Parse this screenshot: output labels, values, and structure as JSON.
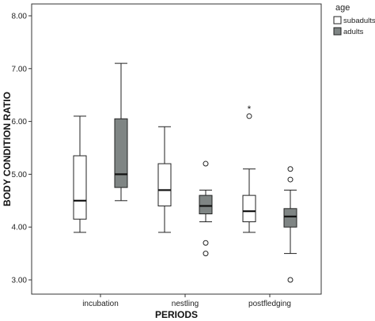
{
  "chart_data": {
    "type": "box",
    "xlabel": "PERIODS",
    "ylabel": "BODY CONDITION RATIO",
    "ylim": [
      2.85,
      8.3
    ],
    "yticks": [
      "3.00",
      "4.00",
      "5.00",
      "6.00",
      "7.00",
      "8.00"
    ],
    "categories": [
      "incubation",
      "nestling",
      "postfledging"
    ],
    "legend": {
      "title": "age",
      "position": "top-right, outside plot"
    },
    "series": [
      {
        "name": "subadults",
        "color": "#ffffff",
        "boxes": [
          {
            "category": "incubation",
            "whisker_low": 3.9,
            "q1": 4.15,
            "median": 4.5,
            "q3": 5.35,
            "whisker_high": 6.1,
            "outliers": [],
            "extremes": []
          },
          {
            "category": "nestling",
            "whisker_low": 3.9,
            "q1": 4.4,
            "median": 4.7,
            "q3": 5.2,
            "whisker_high": 5.9,
            "outliers": [],
            "extremes": []
          },
          {
            "category": "postfledging",
            "whisker_low": 3.9,
            "q1": 4.1,
            "median": 4.3,
            "q3": 4.6,
            "whisker_high": 5.1,
            "outliers": [
              6.1
            ],
            "extremes": [
              6.28
            ]
          }
        ]
      },
      {
        "name": "adults",
        "color": "#7f8584",
        "boxes": [
          {
            "category": "incubation",
            "whisker_low": 4.5,
            "q1": 4.75,
            "median": 5.0,
            "q3": 6.05,
            "whisker_high": 7.1,
            "outliers": [],
            "extremes": []
          },
          {
            "category": "nestling",
            "whisker_low": 4.1,
            "q1": 4.25,
            "median": 4.4,
            "q3": 4.6,
            "whisker_high": 4.7,
            "outliers": [
              5.2,
              3.7,
              3.5
            ],
            "extremes": []
          },
          {
            "category": "postfledging",
            "whisker_low": 3.5,
            "q1": 4.0,
            "median": 4.2,
            "q3": 4.35,
            "whisker_high": 4.7,
            "outliers": [
              5.1,
              4.9,
              3.0
            ],
            "extremes": []
          }
        ]
      }
    ],
    "grid": false,
    "extreme_marker": "*"
  }
}
